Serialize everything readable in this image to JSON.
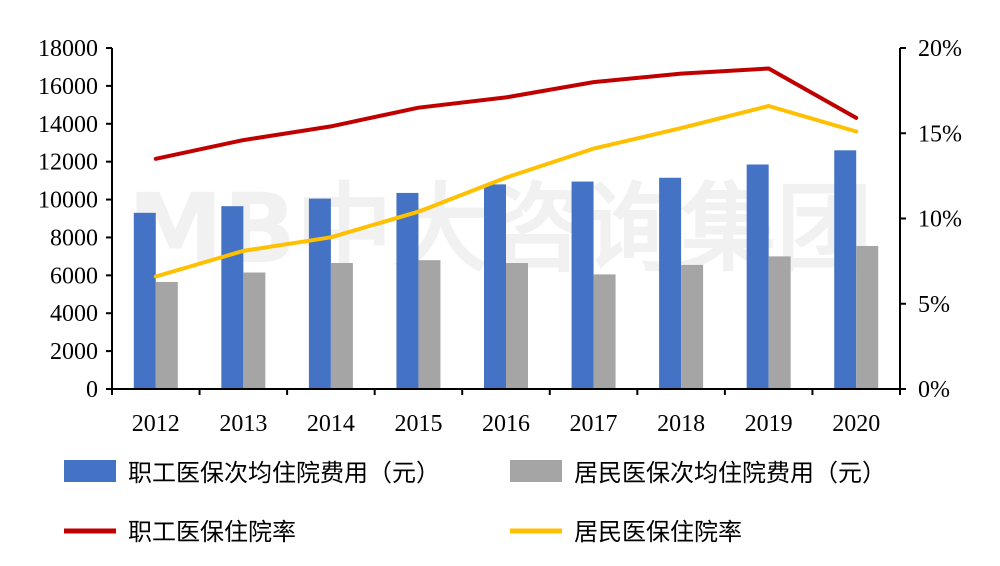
{
  "watermark_text": "MB中大咨询集团",
  "chart_data": {
    "type": "bar",
    "categories": [
      "2012",
      "2013",
      "2014",
      "2015",
      "2016",
      "2017",
      "2018",
      "2019",
      "2020"
    ],
    "y_left": {
      "min": 0,
      "max": 18000,
      "ticks": [
        0,
        2000,
        4000,
        6000,
        8000,
        10000,
        12000,
        14000,
        16000,
        18000
      ]
    },
    "y_right": {
      "min": 0,
      "max": 20,
      "ticks": [
        "0%",
        "5%",
        "10%",
        "15%",
        "20%"
      ]
    },
    "series": [
      {
        "name": "职工医保次均住院费用（元）",
        "kind": "bar",
        "axis": "left",
        "color": "#4472C4",
        "values": [
          9300,
          9650,
          10050,
          10350,
          10800,
          10950,
          11150,
          11850,
          12600
        ]
      },
      {
        "name": "居民医保次均住院费用（元）",
        "kind": "bar",
        "axis": "left",
        "color": "#A5A5A5",
        "values": [
          5650,
          6150,
          6650,
          6800,
          6650,
          6050,
          6550,
          7000,
          7550
        ]
      },
      {
        "name": "职工医保住院率",
        "kind": "line",
        "axis": "right",
        "color": "#C00000",
        "values": [
          13.5,
          14.6,
          15.4,
          16.5,
          17.1,
          18.0,
          18.5,
          18.8,
          15.9
        ]
      },
      {
        "name": "居民医保住院率",
        "kind": "line",
        "axis": "right",
        "color": "#FFC000",
        "values": [
          6.6,
          8.1,
          8.9,
          10.4,
          12.4,
          14.1,
          15.3,
          16.6,
          15.1
        ]
      }
    ],
    "legend_position": "bottom",
    "grid": false
  }
}
